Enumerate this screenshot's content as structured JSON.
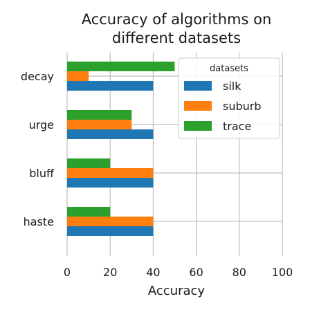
{
  "chart_data": {
    "type": "bar",
    "orientation": "horizontal",
    "title": "Accuracy of algorithms on different datasets",
    "title_lines": [
      "Accuracy of algorithms on",
      "different datasets"
    ],
    "xlabel": "Accuracy",
    "ylabel": "",
    "categories": [
      "decay",
      "urge",
      "bluff",
      "haste"
    ],
    "series": [
      {
        "name": "silk",
        "color": "#1f77b4",
        "values": [
          40,
          40,
          40,
          40
        ]
      },
      {
        "name": "suburb",
        "color": "#ff7f0e",
        "values": [
          10,
          30,
          40,
          40
        ]
      },
      {
        "name": "trace",
        "color": "#2ca02c",
        "values": [
          50,
          30,
          20,
          20
        ]
      }
    ],
    "xlim": [
      0,
      100
    ],
    "xticks": [
      0,
      20,
      40,
      60,
      80,
      100
    ],
    "grid": true,
    "legend": {
      "title": "datasets",
      "placement": "top-right"
    }
  }
}
